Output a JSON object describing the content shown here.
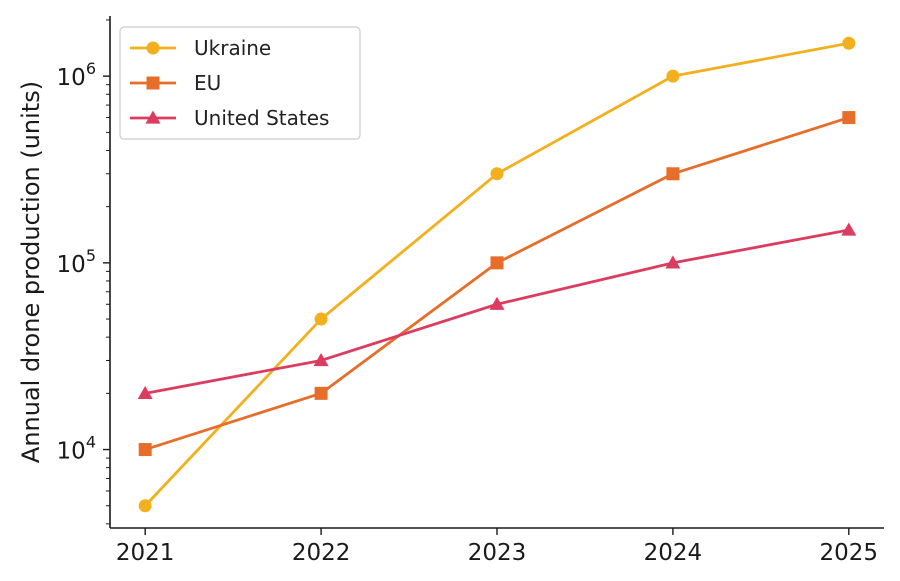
{
  "chart_data": {
    "type": "line",
    "x": [
      2021,
      2022,
      2023,
      2024,
      2025
    ],
    "series": [
      {
        "name": "Ukraine",
        "values": [
          5000,
          50000,
          300000,
          1000000,
          1500000
        ],
        "color": "#F2B01E",
        "marker": "circle"
      },
      {
        "name": "EU",
        "values": [
          10000,
          20000,
          100000,
          300000,
          600000
        ],
        "color": "#E66E2A",
        "marker": "square"
      },
      {
        "name": "United States",
        "values": [
          20000,
          30000,
          60000,
          100000,
          150000
        ],
        "color": "#DC3C5F",
        "marker": "triangle"
      }
    ],
    "title": "",
    "xlabel": "",
    "ylabel": "Annual drone production (units)",
    "yscale": "log",
    "ylim": [
      3800,
      2100000
    ],
    "xlim": [
      2020.8,
      2025.2
    ],
    "y_ticks": [
      {
        "value": 10000,
        "base": "10",
        "exp": "4"
      },
      {
        "value": 100000,
        "base": "10",
        "exp": "5"
      },
      {
        "value": 1000000,
        "base": "10",
        "exp": "6"
      }
    ],
    "x_ticks": [
      "2021",
      "2022",
      "2023",
      "2024",
      "2025"
    ],
    "grid": false,
    "legend_position": "top-left"
  }
}
